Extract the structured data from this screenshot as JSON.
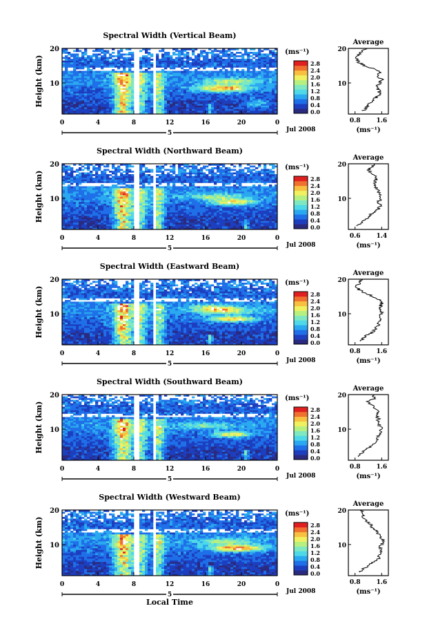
{
  "figure": {
    "xlabel": "Local Time",
    "date_label": "Jul 2008",
    "day_label": "5",
    "cbar_unit": "(ms⁻¹)",
    "avg_title": "Average",
    "avg_xlabel": "(ms⁻¹)",
    "ylabel": "Height (km)"
  },
  "colorscale": [
    "#2a2a80",
    "#1d3fbf",
    "#1f6fe8",
    "#2aa8f0",
    "#4fd8e8",
    "#7fe8c0",
    "#b8f080",
    "#f0f060",
    "#f8c040",
    "#f07030",
    "#e02020"
  ],
  "chart_data": [
    {
      "type": "heatmap",
      "title": "Spectral Width (Vertical Beam)",
      "xlabel": "",
      "ylabel": "Height (km)",
      "xlim": [
        0,
        24
      ],
      "ylim": [
        1,
        20
      ],
      "xticks": [
        "0",
        "4",
        "8",
        "12",
        "16",
        "20",
        "0"
      ],
      "yticks": [
        "10",
        "20"
      ],
      "colorbar": {
        "unit": "(ms⁻¹)",
        "ticks": [
          "0.0",
          "0.4",
          "0.8",
          "1.2",
          "1.6",
          "2.0",
          "2.4",
          "2.8"
        ]
      },
      "profile": {
        "title": "Average",
        "xticks": [
          "0.8",
          "1.6"
        ],
        "xlim": [
          0.6,
          1.8
        ],
        "heights": [
          2,
          3,
          4,
          5,
          6,
          7,
          8,
          9,
          10,
          11,
          12,
          13,
          14,
          15,
          16,
          17,
          18,
          19,
          20
        ],
        "values": [
          1.05,
          1.15,
          1.25,
          1.35,
          1.45,
          1.55,
          1.5,
          1.45,
          1.55,
          1.6,
          1.5,
          1.55,
          1.4,
          1.1,
          0.9,
          0.85,
          0.9,
          1.0,
          1.1
        ]
      }
    },
    {
      "type": "heatmap",
      "title": "Spectral Width (Northward Beam)",
      "xlabel": "",
      "ylabel": "Height (km)",
      "xlim": [
        0,
        24
      ],
      "ylim": [
        1,
        20
      ],
      "xticks": [
        "0",
        "4",
        "8",
        "12",
        "16",
        "20",
        "0"
      ],
      "yticks": [
        "10",
        "20"
      ],
      "colorbar": {
        "unit": "(ms⁻¹)",
        "ticks": [
          "0.0",
          "0.4",
          "0.8",
          "1.2",
          "1.6",
          "2.0",
          "2.4",
          "2.8"
        ]
      },
      "profile": {
        "title": "Average",
        "xticks": [
          "0.6",
          "1.4"
        ],
        "xlim": [
          0.4,
          1.6
        ],
        "heights": [
          2,
          3,
          4,
          5,
          6,
          7,
          8,
          9,
          10,
          11,
          12,
          13,
          14,
          15,
          16,
          17,
          18,
          19,
          20
        ],
        "values": [
          0.7,
          0.8,
          0.95,
          1.05,
          1.15,
          1.3,
          1.35,
          1.3,
          1.4,
          1.35,
          1.3,
          1.25,
          1.2,
          1.2,
          1.25,
          1.15,
          1.0,
          1.1,
          1.2
        ]
      }
    },
    {
      "type": "heatmap",
      "title": "Spectral Width (Eastward Beam)",
      "xlabel": "",
      "ylabel": "Height (km)",
      "xlim": [
        0,
        24
      ],
      "ylim": [
        1,
        20
      ],
      "xticks": [
        "0",
        "4",
        "8",
        "12",
        "16",
        "20",
        "0"
      ],
      "yticks": [
        "10",
        "20"
      ],
      "colorbar": {
        "unit": "(ms⁻¹)",
        "ticks": [
          "0.0",
          "0.4",
          "0.8",
          "1.2",
          "1.6",
          "2.0",
          "2.4",
          "2.8"
        ]
      },
      "profile": {
        "title": "Average",
        "xticks": [
          "0.8",
          "1.6"
        ],
        "xlim": [
          0.6,
          1.8
        ],
        "heights": [
          2,
          3,
          4,
          5,
          6,
          7,
          8,
          9,
          10,
          11,
          12,
          13,
          14,
          15,
          16,
          17,
          18,
          19,
          20
        ],
        "values": [
          0.95,
          1.05,
          1.2,
          1.35,
          1.45,
          1.5,
          1.55,
          1.5,
          1.6,
          1.6,
          1.55,
          1.6,
          1.55,
          1.35,
          1.1,
          0.9,
          0.85,
          0.95,
          1.0
        ]
      }
    },
    {
      "type": "heatmap",
      "title": "Spectral Width (Southward Beam)",
      "xlabel": "",
      "ylabel": "Height (km)",
      "xlim": [
        0,
        24
      ],
      "ylim": [
        1,
        20
      ],
      "xticks": [
        "0",
        "4",
        "8",
        "12",
        "16",
        "20",
        "0"
      ],
      "yticks": [
        "10",
        "20"
      ],
      "colorbar": {
        "unit": "(ms⁻¹)",
        "ticks": [
          "0.0",
          "0.4",
          "0.8",
          "1.2",
          "1.6",
          "2.0",
          "2.4",
          "2.8"
        ]
      },
      "profile": {
        "title": "Average",
        "xticks": [
          "0.8",
          "1.6"
        ],
        "xlim": [
          0.6,
          1.8
        ],
        "heights": [
          2,
          3,
          4,
          5,
          6,
          7,
          8,
          9,
          10,
          11,
          12,
          13,
          14,
          15,
          16,
          17,
          18,
          19,
          20
        ],
        "values": [
          0.9,
          1.0,
          1.1,
          1.25,
          1.4,
          1.45,
          1.5,
          1.55,
          1.6,
          1.55,
          1.5,
          1.5,
          1.45,
          1.5,
          1.4,
          1.3,
          1.2,
          1.4,
          1.35
        ]
      }
    },
    {
      "type": "heatmap",
      "title": "Spectral Width (Westward Beam)",
      "xlabel": "Local Time",
      "ylabel": "Height (km)",
      "xlim": [
        0,
        24
      ],
      "ylim": [
        1,
        20
      ],
      "xticks": [
        "0",
        "4",
        "8",
        "12",
        "16",
        "20",
        "0"
      ],
      "yticks": [
        "10",
        "20"
      ],
      "colorbar": {
        "unit": "(ms⁻¹)",
        "ticks": [
          "0.0",
          "0.4",
          "0.8",
          "1.2",
          "1.6",
          "2.0",
          "2.4",
          "2.8"
        ]
      },
      "profile": {
        "title": "Average",
        "xticks": [
          "0.8",
          "1.6"
        ],
        "xlim": [
          0.6,
          1.8
        ],
        "heights": [
          2,
          3,
          4,
          5,
          6,
          7,
          8,
          9,
          10,
          11,
          12,
          13,
          14,
          15,
          16,
          17,
          18,
          19,
          20
        ],
        "values": [
          0.95,
          1.05,
          1.2,
          1.35,
          1.5,
          1.55,
          1.6,
          1.55,
          1.6,
          1.65,
          1.55,
          1.5,
          1.45,
          1.3,
          1.25,
          1.1,
          1.0,
          1.05,
          0.95
        ]
      }
    }
  ]
}
